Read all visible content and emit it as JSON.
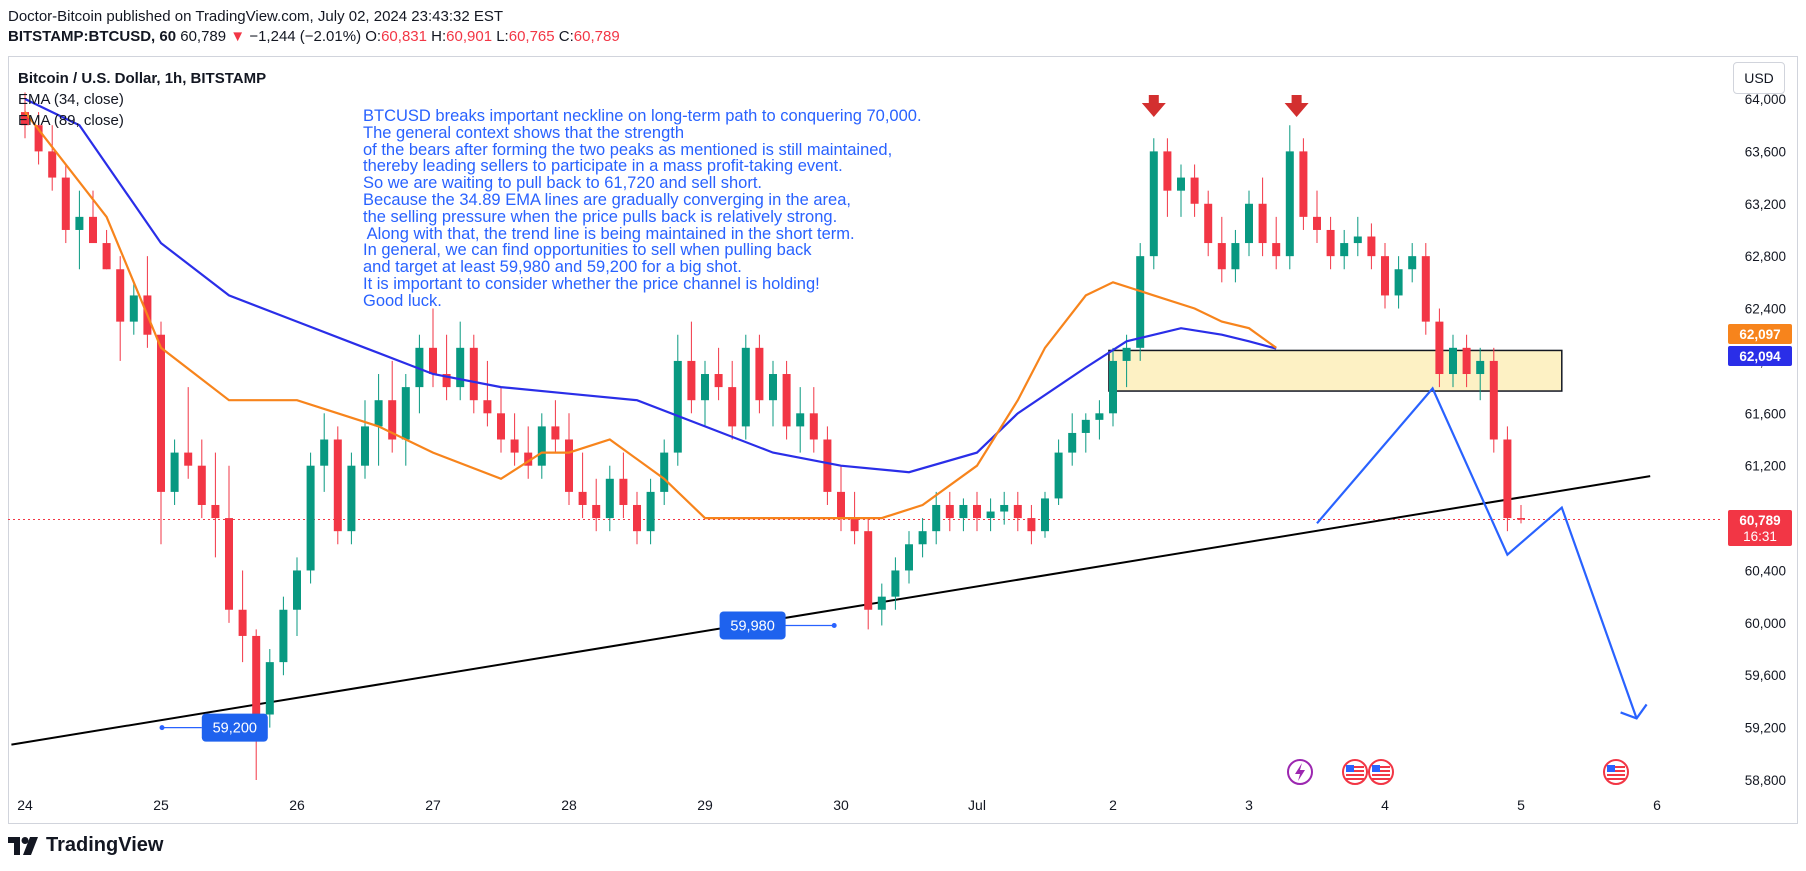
{
  "header": {
    "publisher_line": "Doctor-Bitcoin published on TradingView.com, July 02, 2024 23:43:32 EST",
    "symbol": "BITSTAMP:BTCUSD, 60",
    "last": "60,789",
    "change": "−1,244 (−2.01%)",
    "open_label": "O:",
    "open": "60,831",
    "high_label": "H:",
    "high": "60,901",
    "low_label": "L:",
    "low": "60,765",
    "close_label": "C:",
    "close": "60,789"
  },
  "legend": {
    "title": "Bitcoin / U.S. Dollar, 1h, BITSTAMP",
    "ema1": "EMA (34, close)",
    "ema2": "EMA (89, close)"
  },
  "currency_button": "USD",
  "annotation": "BTCUSD breaks important neckline on long-term path to conquering 70,000.\nThe general context shows that the strength\nof the bears after forming the two peaks as mentioned is still maintained,\nthereby leading sellers to participate in a mass profit-taking event.\nSo we are waiting to pull back to 61,720 and sell short.\nBecause the 34.89 EMA lines are gradually converging in the area,\nthe selling pressure when the price pulls back is relatively strong.\n Along with that, the trend line is being maintained in the short term.\nIn general, we can find opportunities to sell when pulling back\nand target at least 59,980 and 59,200 for a big shot.\nIt is important to consider whether the price channel is holding!\nGood luck.",
  "footer": {
    "brand": "TradingView"
  },
  "colors": {
    "up": "#089981",
    "down": "#f23645",
    "ema34": "#f7841c",
    "ema89": "#2a2ee8",
    "projection": "#2962ff",
    "zone_fill": "#fdf1c4",
    "label_bg": "#1e62ee"
  },
  "chart_data": {
    "type": "candlestick",
    "title": "Bitcoin / U.S. Dollar, 1h, BITSTAMP",
    "price_axis": [
      "64,000",
      "63,600",
      "63,200",
      "62,800",
      "62,400",
      "62,000",
      "61,600",
      "61,200",
      "60,800",
      "60,400",
      "60,000",
      "59,600",
      "59,200",
      "58,800"
    ],
    "time_axis": [
      "24",
      "25",
      "26",
      "27",
      "28",
      "29",
      "30",
      "Jul",
      "2",
      "3",
      "4",
      "5",
      "6"
    ],
    "ylim": [
      58750,
      64050
    ],
    "price_labels": [
      {
        "value": "62,097",
        "color": "#f7841c"
      },
      {
        "value": "62,094",
        "color": "#2a2ee8"
      },
      {
        "value": "60,789",
        "countdown": "16:31",
        "color": "#f23645"
      }
    ],
    "level_labels": [
      "59,980",
      "59,200"
    ],
    "last_price": 60789,
    "ema34": [
      [
        0,
        63900
      ],
      [
        0.6,
        63100
      ],
      [
        1.0,
        62100
      ],
      [
        1.5,
        61700
      ],
      [
        2.0,
        61700
      ],
      [
        2.3,
        61600
      ],
      [
        2.6,
        61500
      ],
      [
        3.0,
        61300
      ],
      [
        3.5,
        61100
      ],
      [
        3.8,
        61300
      ],
      [
        4.0,
        61300
      ],
      [
        4.3,
        61400
      ],
      [
        4.7,
        61100
      ],
      [
        5.0,
        60800
      ],
      [
        5.3,
        60800
      ],
      [
        5.6,
        60800
      ],
      [
        6.0,
        60800
      ],
      [
        6.3,
        60800
      ],
      [
        6.6,
        60900
      ],
      [
        7.0,
        61200
      ],
      [
        7.3,
        61700
      ],
      [
        7.5,
        62100
      ],
      [
        7.8,
        62500
      ],
      [
        8.0,
        62600
      ],
      [
        8.3,
        62500
      ],
      [
        8.6,
        62400
      ],
      [
        8.8,
        62300
      ],
      [
        9.0,
        62250
      ],
      [
        9.2,
        62100
      ]
    ],
    "ema89": [
      [
        0,
        64000
      ],
      [
        0.4,
        63800
      ],
      [
        0.8,
        63200
      ],
      [
        1.0,
        62900
      ],
      [
        1.5,
        62500
      ],
      [
        2.0,
        62300
      ],
      [
        2.5,
        62100
      ],
      [
        3.0,
        61900
      ],
      [
        3.5,
        61800
      ],
      [
        4.0,
        61750
      ],
      [
        4.5,
        61700
      ],
      [
        5.0,
        61500
      ],
      [
        5.5,
        61300
      ],
      [
        6.0,
        61200
      ],
      [
        6.5,
        61150
      ],
      [
        7.0,
        61300
      ],
      [
        7.3,
        61600
      ],
      [
        7.8,
        61950
      ],
      [
        8.1,
        62150
      ],
      [
        8.5,
        62250
      ],
      [
        8.8,
        62200
      ],
      [
        9.0,
        62150
      ],
      [
        9.2,
        62094
      ]
    ],
    "resistance_zone": {
      "top": 62080,
      "bottom": 61770,
      "x_from": 7.97,
      "x_to": 11.3
    },
    "trendline": {
      "from": [
        -0.1,
        59070
      ],
      "to": [
        11.95,
        61120
      ]
    },
    "projection_path": [
      [
        9.5,
        60760
      ],
      [
        10.35,
        61790
      ],
      [
        10.9,
        60520
      ],
      [
        11.3,
        60880
      ],
      [
        11.85,
        59270
      ]
    ],
    "peak_markers": [
      8.3,
      9.35
    ],
    "candles": [
      [
        0.0,
        63900,
        64050,
        63700,
        63800
      ],
      [
        0.1,
        63800,
        63900,
        63500,
        63600
      ],
      [
        0.2,
        63600,
        63800,
        63300,
        63400
      ],
      [
        0.3,
        63400,
        63500,
        62900,
        63000
      ],
      [
        0.4,
        63000,
        63300,
        62700,
        63100
      ],
      [
        0.5,
        63100,
        63300,
        62900,
        62900
      ],
      [
        0.6,
        62900,
        63000,
        62700,
        62700
      ],
      [
        0.7,
        62700,
        62800,
        62000,
        62300
      ],
      [
        0.8,
        62300,
        62600,
        62200,
        62500
      ],
      [
        0.9,
        62500,
        62800,
        62100,
        62200
      ],
      [
        1.0,
        62200,
        62300,
        60600,
        61000
      ],
      [
        1.1,
        61000,
        61400,
        60900,
        61300
      ],
      [
        1.2,
        61300,
        61800,
        61100,
        61200
      ],
      [
        1.3,
        61200,
        61400,
        60800,
        60900
      ],
      [
        1.4,
        60900,
        61300,
        60500,
        60800
      ],
      [
        1.5,
        60800,
        61200,
        60000,
        60100
      ],
      [
        1.6,
        60100,
        60400,
        59700,
        59900
      ],
      [
        1.7,
        59900,
        59950,
        58800,
        59300
      ],
      [
        1.8,
        59300,
        59800,
        59200,
        59700
      ],
      [
        1.9,
        59700,
        60200,
        59600,
        60100
      ],
      [
        2.0,
        60100,
        60500,
        59900,
        60400
      ],
      [
        2.1,
        60400,
        61300,
        60300,
        61200
      ],
      [
        2.2,
        61200,
        61600,
        61000,
        61400
      ],
      [
        2.3,
        61400,
        61500,
        60600,
        60700
      ],
      [
        2.4,
        60700,
        61300,
        60600,
        61200
      ],
      [
        2.5,
        61200,
        61700,
        61100,
        61500
      ],
      [
        2.6,
        61500,
        61900,
        61200,
        61700
      ],
      [
        2.7,
        61700,
        62000,
        61300,
        61400
      ],
      [
        2.8,
        61400,
        61900,
        61200,
        61800
      ],
      [
        2.9,
        61800,
        62200,
        61600,
        62100
      ],
      [
        3.0,
        62100,
        62400,
        61800,
        61900
      ],
      [
        3.1,
        61900,
        62200,
        61700,
        61800
      ],
      [
        3.2,
        61800,
        62300,
        61700,
        62100
      ],
      [
        3.3,
        62100,
        62200,
        61600,
        61700
      ],
      [
        3.4,
        61700,
        62000,
        61500,
        61600
      ],
      [
        3.5,
        61600,
        61800,
        61300,
        61400
      ],
      [
        3.6,
        61400,
        61600,
        61200,
        61300
      ],
      [
        3.7,
        61300,
        61500,
        61100,
        61200
      ],
      [
        3.8,
        61200,
        61600,
        61100,
        61500
      ],
      [
        3.9,
        61500,
        61700,
        61300,
        61400
      ],
      [
        4.0,
        61400,
        61600,
        60900,
        61000
      ],
      [
        4.1,
        61000,
        61300,
        60800,
        60900
      ],
      [
        4.2,
        60900,
        61100,
        60700,
        60800
      ],
      [
        4.3,
        60800,
        61200,
        60700,
        61100
      ],
      [
        4.4,
        61100,
        61300,
        60800,
        60900
      ],
      [
        4.5,
        60900,
        61000,
        60600,
        60700
      ],
      [
        4.6,
        60700,
        61100,
        60600,
        61000
      ],
      [
        4.7,
        61000,
        61400,
        60900,
        61300
      ],
      [
        4.8,
        61300,
        62200,
        61200,
        62000
      ],
      [
        4.9,
        62000,
        62300,
        61600,
        61700
      ],
      [
        5.0,
        61700,
        62000,
        61500,
        61900
      ],
      [
        5.1,
        61900,
        62100,
        61700,
        61800
      ],
      [
        5.2,
        61800,
        62000,
        61400,
        61500
      ],
      [
        5.3,
        61500,
        62200,
        61400,
        62100
      ],
      [
        5.4,
        62100,
        62200,
        61600,
        61700
      ],
      [
        5.5,
        61700,
        62000,
        61500,
        61900
      ],
      [
        5.6,
        61900,
        62000,
        61400,
        61500
      ],
      [
        5.7,
        61500,
        61800,
        61300,
        61600
      ],
      [
        5.8,
        61600,
        61800,
        61300,
        61400
      ],
      [
        5.9,
        61400,
        61500,
        60900,
        61000
      ],
      [
        6.0,
        61000,
        61200,
        60700,
        60800
      ],
      [
        6.1,
        60800,
        61000,
        60600,
        60700
      ],
      [
        6.2,
        60700,
        60800,
        59950,
        60100
      ],
      [
        6.3,
        60100,
        60300,
        59980,
        60200
      ],
      [
        6.4,
        60200,
        60500,
        60100,
        60400
      ],
      [
        6.5,
        60400,
        60700,
        60300,
        60600
      ],
      [
        6.6,
        60600,
        60800,
        60500,
        60700
      ],
      [
        6.7,
        60700,
        61000,
        60600,
        60900
      ],
      [
        6.8,
        60900,
        61000,
        60700,
        60800
      ],
      [
        6.9,
        60800,
        60950,
        60700,
        60900
      ],
      [
        7.0,
        60900,
        61000,
        60700,
        60800
      ],
      [
        7.1,
        60800,
        60950,
        60700,
        60850
      ],
      [
        7.2,
        60850,
        61000,
        60750,
        60900
      ],
      [
        7.3,
        60900,
        61000,
        60700,
        60800
      ],
      [
        7.4,
        60800,
        60900,
        60600,
        60700
      ],
      [
        7.5,
        60700,
        61000,
        60650,
        60950
      ],
      [
        7.6,
        60950,
        61400,
        60900,
        61300
      ],
      [
        7.7,
        61300,
        61600,
        61200,
        61450
      ],
      [
        7.8,
        61450,
        61600,
        61300,
        61550
      ],
      [
        7.9,
        61550,
        61700,
        61400,
        61600
      ],
      [
        8.0,
        61600,
        62100,
        61500,
        62000
      ],
      [
        8.1,
        62000,
        62200,
        61800,
        62100
      ],
      [
        8.2,
        62100,
        62900,
        62000,
        62800
      ],
      [
        8.3,
        62800,
        63700,
        62700,
        63600
      ],
      [
        8.4,
        63600,
        63700,
        63100,
        63300
      ],
      [
        8.5,
        63300,
        63500,
        63100,
        63400
      ],
      [
        8.6,
        63400,
        63500,
        63100,
        63200
      ],
      [
        8.7,
        63200,
        63300,
        62800,
        62900
      ],
      [
        8.8,
        62900,
        63100,
        62600,
        62700
      ],
      [
        8.9,
        62700,
        63000,
        62600,
        62900
      ],
      [
        9.0,
        62900,
        63300,
        62800,
        63200
      ],
      [
        9.1,
        63200,
        63400,
        62800,
        62900
      ],
      [
        9.2,
        62900,
        63100,
        62700,
        62800
      ],
      [
        9.3,
        62800,
        63800,
        62700,
        63600
      ],
      [
        9.4,
        63600,
        63700,
        63000,
        63100
      ],
      [
        9.5,
        63100,
        63300,
        62900,
        63000
      ],
      [
        9.6,
        63000,
        63100,
        62700,
        62800
      ],
      [
        9.7,
        62800,
        63000,
        62700,
        62900
      ],
      [
        9.8,
        62900,
        63100,
        62800,
        62950
      ],
      [
        9.9,
        62950,
        63050,
        62700,
        62800
      ],
      [
        10.0,
        62800,
        62900,
        62400,
        62500
      ],
      [
        10.1,
        62500,
        62800,
        62400,
        62700
      ],
      [
        10.2,
        62700,
        62900,
        62600,
        62800
      ],
      [
        10.3,
        62800,
        62900,
        62200,
        62300
      ],
      [
        10.4,
        62300,
        62400,
        61800,
        61900
      ],
      [
        10.5,
        61900,
        62200,
        61800,
        62100
      ],
      [
        10.6,
        62100,
        62200,
        61800,
        61900
      ],
      [
        10.7,
        61900,
        62100,
        61700,
        62000
      ],
      [
        10.8,
        62000,
        62100,
        61300,
        61400
      ],
      [
        10.9,
        61400,
        61500,
        60700,
        60800
      ],
      [
        11.0,
        60800,
        60900,
        60760,
        60789
      ]
    ]
  }
}
